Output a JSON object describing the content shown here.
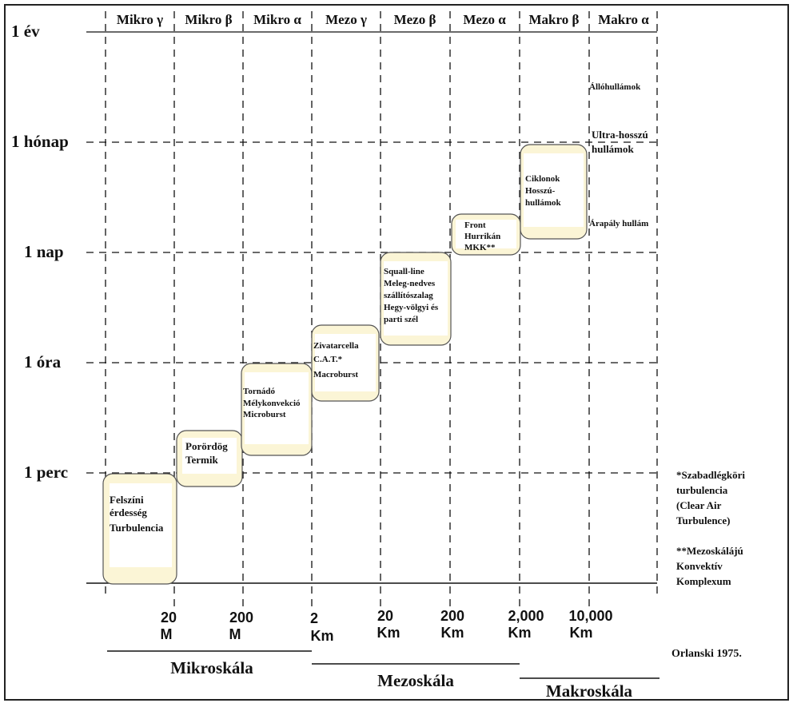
{
  "scale_headers": [
    "Mikro γ",
    "Mikro β",
    "Mikro α",
    "Mezo γ",
    "Mezo β",
    "Mezo α",
    "Makro β",
    "Makro α"
  ],
  "time_labels": [
    "1 év",
    "1 hónap",
    "1 nap",
    "1 óra",
    "1 perc"
  ],
  "distance_labels": [
    [
      "20",
      "M"
    ],
    [
      "200",
      "M"
    ],
    [
      "2",
      "Km"
    ],
    [
      "20",
      "Km"
    ],
    [
      "200",
      "Km"
    ],
    [
      "2,000",
      "Km"
    ],
    [
      "10,000",
      "Km"
    ]
  ],
  "scale_groups": [
    "Mikroskála",
    "Mezoskála",
    "Makroskála"
  ],
  "phenomena": [
    [
      "Felszíni",
      "érdesség",
      "Turbulencia"
    ],
    [
      "Porördög",
      "Termik"
    ],
    [
      "Tornádó",
      "Mélykonvekció",
      "Microburst"
    ],
    [
      "Zivatarcella",
      "C.A.T.*",
      "Macroburst"
    ],
    [
      "Squall-line",
      "Meleg-nedves",
      "szállítószalag",
      "Hegy-völgyi és",
      "parti szél"
    ],
    [
      "Front",
      "Hurrikán",
      "MKK**"
    ],
    [
      "Ciklonok",
      "Hosszú-",
      "hullámok"
    ]
  ],
  "side_labels": {
    "standing_waves": "Állóhullámok",
    "ultra_long": [
      "Ultra-hosszú",
      "hullámok"
    ],
    "tidal": "Árapály hullám"
  },
  "footnotes": {
    "cat": [
      "*Szabadlégköri",
      "turbulencia",
      "(Clear Air",
      "Turbulence)"
    ],
    "mkk": [
      "**Mezoskálájú",
      "Konvektív",
      "Komplexum"
    ]
  },
  "source": "Orlanski 1975.",
  "colors": {
    "box_fill": "#fbf5d6",
    "box_inner": "#ffffff",
    "box_border": "#555555",
    "line": "#111111"
  }
}
